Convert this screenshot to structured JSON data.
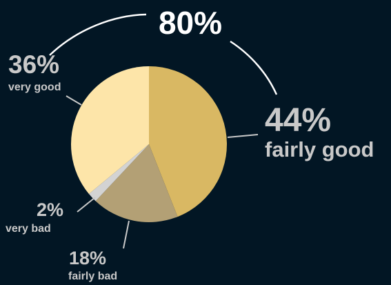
{
  "chart_data": {
    "type": "pie",
    "total_label": "80%",
    "slices": [
      {
        "label": "fairly good",
        "value": 44,
        "value_label": "44%",
        "color": "#d9b863"
      },
      {
        "label": "fairly bad",
        "value": 18,
        "value_label": "18%",
        "color": "#b3a075"
      },
      {
        "label": "very bad",
        "value": 2,
        "value_label": "2%",
        "color": "#d3d3d3"
      },
      {
        "label": "very good",
        "value": 36,
        "value_label": "36%",
        "color": "#fde5a9"
      }
    ],
    "colors": {
      "background": "#021624",
      "label": "#c9c9c9",
      "total": "#ffffff"
    }
  }
}
